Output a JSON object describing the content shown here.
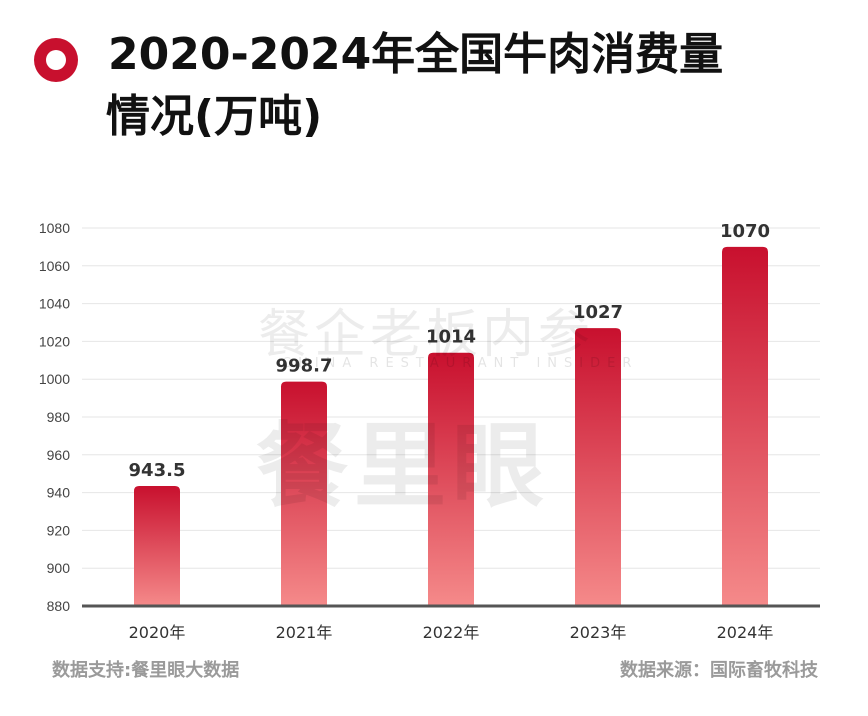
{
  "title": {
    "line1": "2020-2024年全国牛肉消费量",
    "line2": "情况(万吨)"
  },
  "watermark": {
    "line1": "餐企老板内参",
    "line2": "CHINA RESTAURANT INSIDER",
    "line3": "餐里眼"
  },
  "footer": {
    "left": "数据支持:餐里眼大数据",
    "right": "数据来源：国际畜牧科技"
  },
  "colors": {
    "accent": "#c8102e",
    "bar_top": "#c8102e",
    "bar_bottom": "#f58a8a",
    "grid": "#e6e6e6",
    "axis": "#555555"
  },
  "chart_data": {
    "type": "bar",
    "title": "2020-2024年全国牛肉消费量情况(万吨)",
    "categories": [
      "2020年",
      "2021年",
      "2022年",
      "2023年",
      "2024年"
    ],
    "values": [
      943.5,
      998.7,
      1014,
      1027,
      1070
    ],
    "value_labels": [
      "943.5",
      "998.7",
      "1014",
      "1027",
      "1070"
    ],
    "ylim": [
      880,
      1080
    ],
    "yticks": [
      880,
      900,
      920,
      940,
      960,
      980,
      1000,
      1020,
      1040,
      1060,
      1080
    ],
    "grid": true,
    "legend": "none"
  }
}
